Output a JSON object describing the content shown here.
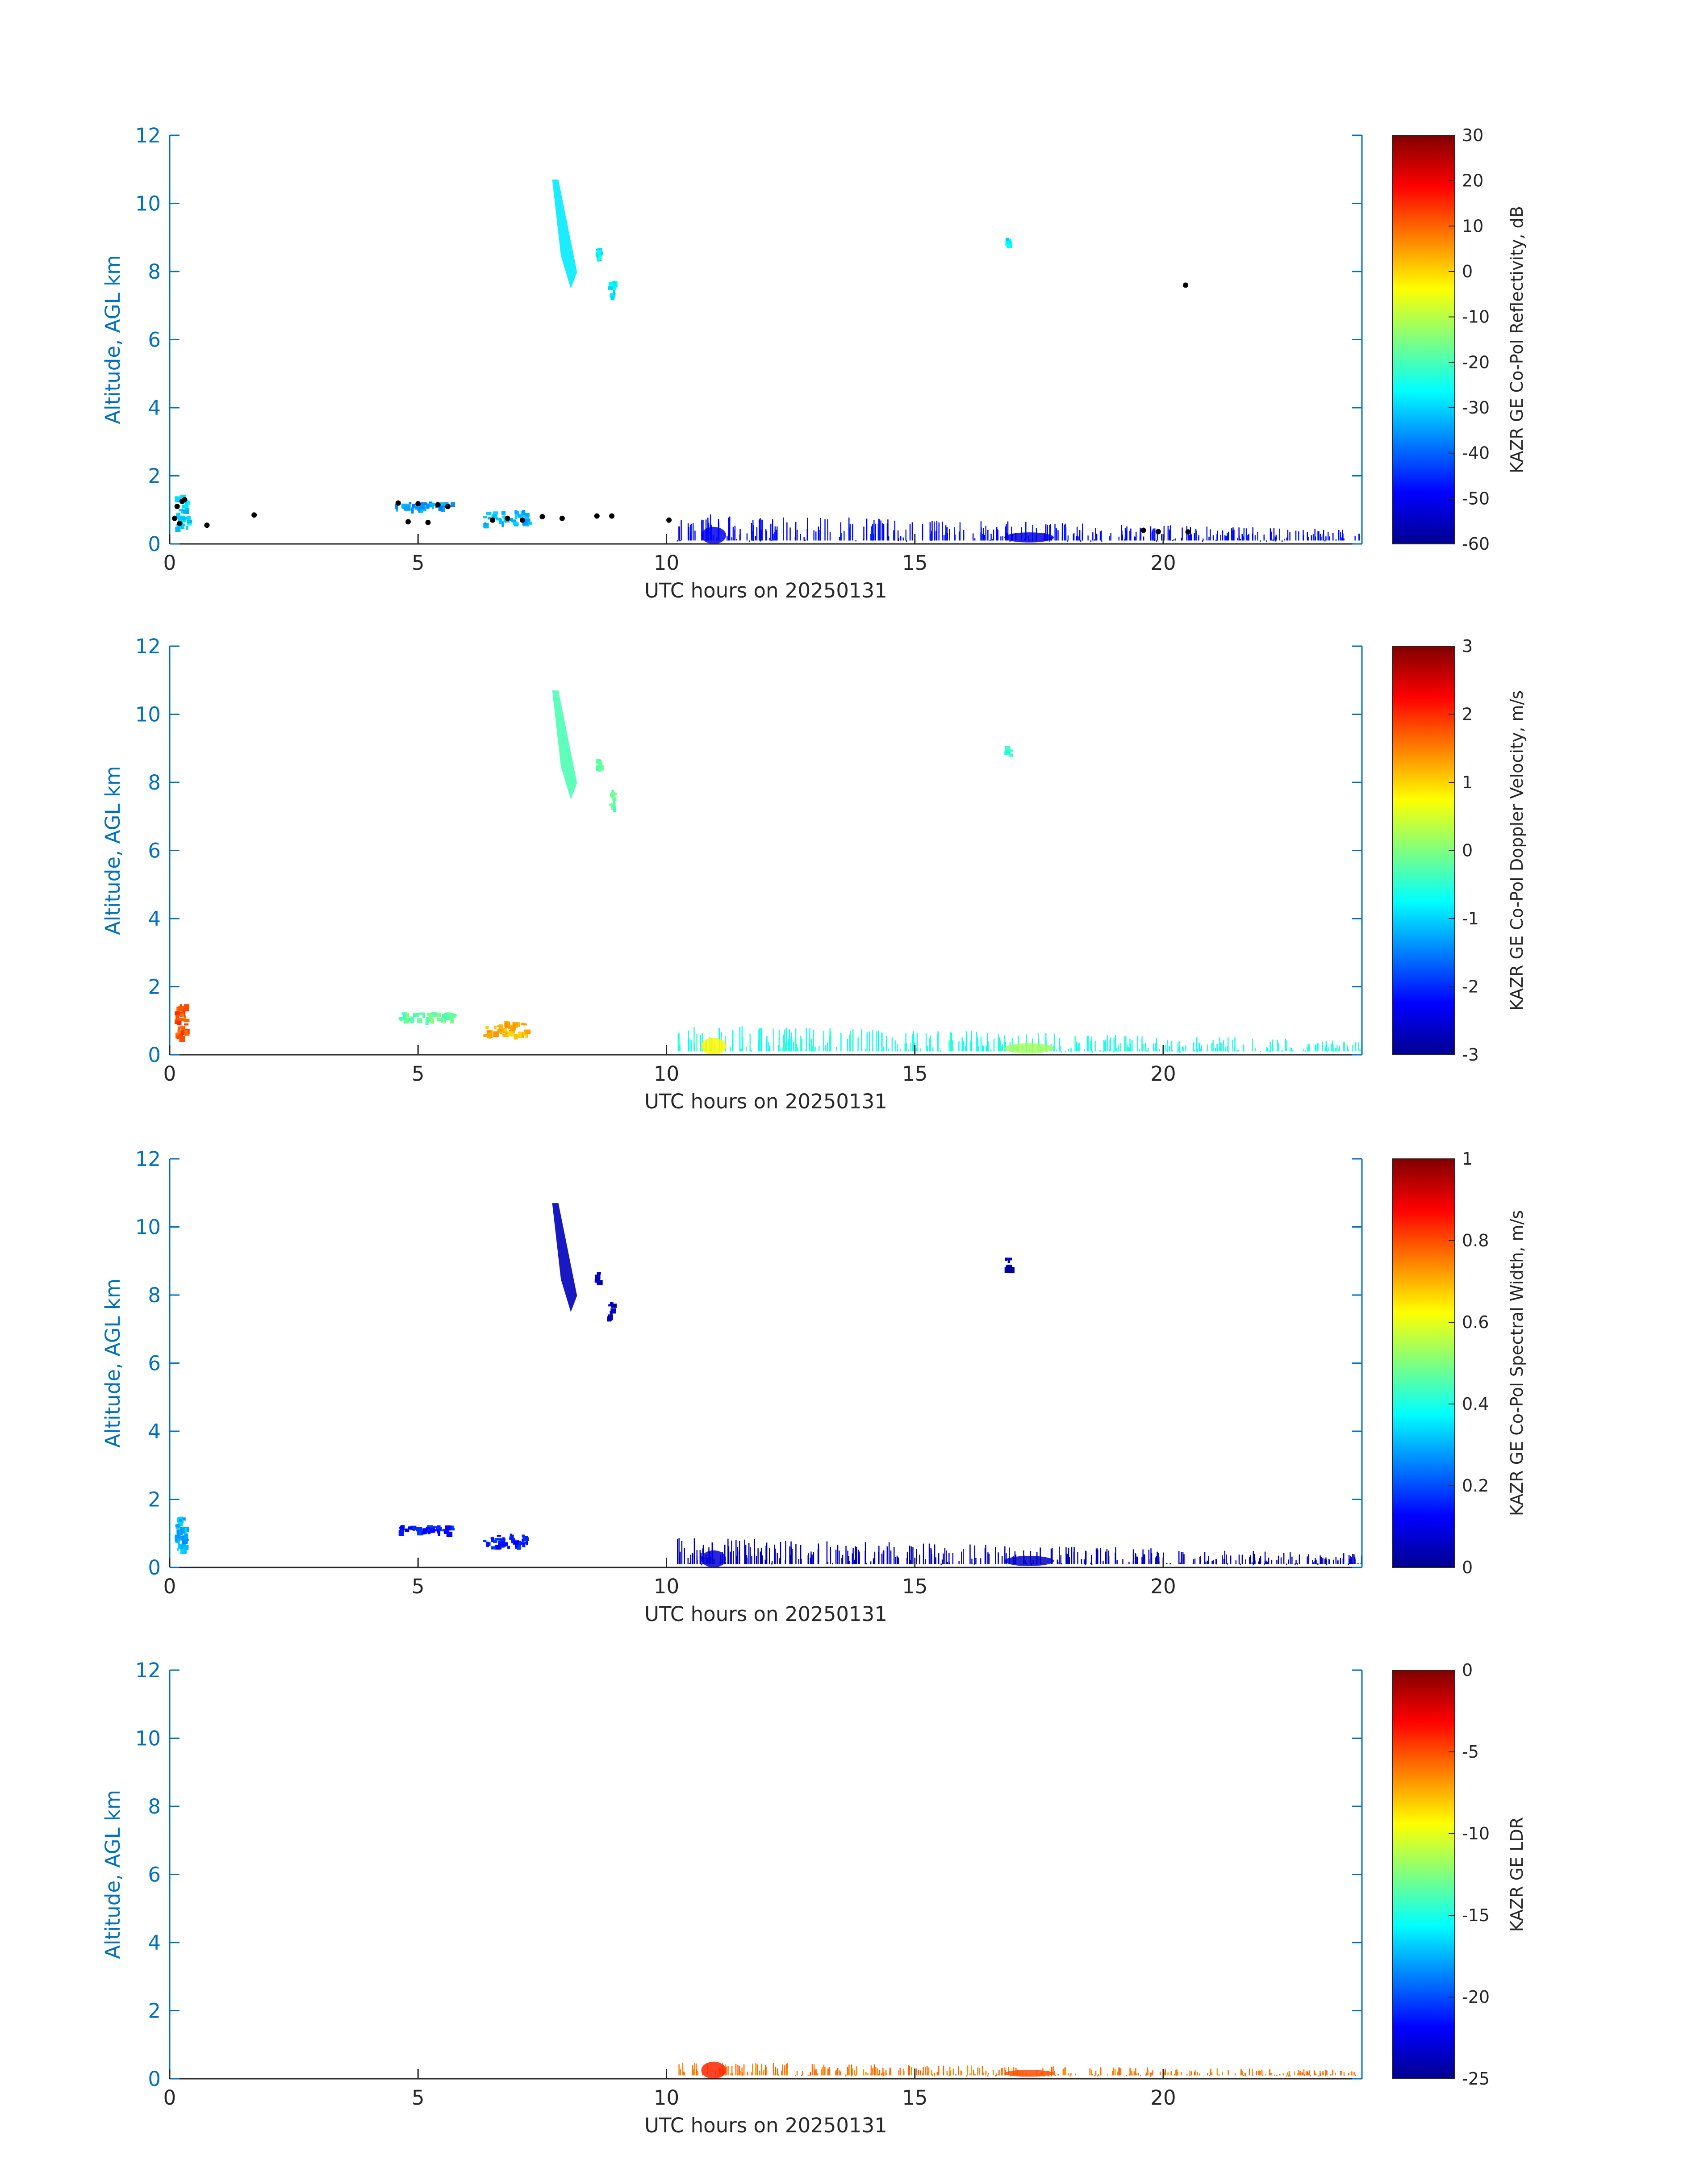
{
  "chart_data": [
    {
      "type": "heatmap",
      "xlabel": "UTC hours on 20250131",
      "ylabel": "Altitude, AGL km",
      "xlim": [
        0,
        24
      ],
      "ylim": [
        0,
        12
      ],
      "xticks": [
        "0",
        "5",
        "10",
        "15",
        "20"
      ],
      "yticks": [
        "0",
        "2",
        "4",
        "6",
        "8",
        "10",
        "12"
      ],
      "colorbar": {
        "label": "KAZR GE Co-Pol Reflectivity, dB",
        "range": [
          -60,
          30
        ],
        "ticks": [
          "30",
          "20",
          "10",
          "0",
          "-10",
          "-20",
          "-30",
          "-40",
          "-50",
          "-60"
        ],
        "colormap": "jet"
      },
      "features": [
        {
          "kind": "fall-streak",
          "x": [
            7.7,
            8.2
          ],
          "y": [
            7.5,
            10.7
          ],
          "value": -28
        },
        {
          "kind": "patch",
          "x": [
            8.8,
            8.95
          ],
          "y": [
            7.3,
            7.8
          ],
          "value": -28
        },
        {
          "kind": "patch",
          "x": [
            8.55,
            8.65
          ],
          "y": [
            8.4,
            8.7
          ],
          "value": -28
        },
        {
          "kind": "patch",
          "x": [
            16.8,
            16.9
          ],
          "y": [
            8.8,
            9.1
          ],
          "value": -28
        },
        {
          "kind": "low-cloud",
          "x": [
            0.1,
            0.35
          ],
          "y": [
            0.5,
            1.5
          ],
          "value": -30
        },
        {
          "kind": "low-cloud",
          "x": [
            4.5,
            5.7
          ],
          "y": [
            1.05,
            1.25
          ],
          "value": -35
        },
        {
          "kind": "low-cloud",
          "x": [
            6.3,
            7.2
          ],
          "y": [
            0.6,
            1.0
          ],
          "value": -32
        },
        {
          "kind": "boundary-layer",
          "x": [
            10.2,
            24
          ],
          "y": [
            0.1,
            0.9
          ],
          "value": -48
        },
        {
          "kind": "core",
          "x": [
            10.7,
            11.2
          ],
          "y": [
            0.1,
            0.6
          ],
          "value": -50
        },
        {
          "kind": "core",
          "x": [
            16.8,
            17.8
          ],
          "y": [
            0.1,
            0.4
          ],
          "value": -52
        }
      ],
      "markers": {
        "color": "#000000",
        "points": [
          [
            0.15,
            1.1
          ],
          [
            0.25,
            1.25
          ],
          [
            0.3,
            1.3
          ],
          [
            0.2,
            0.6
          ],
          [
            0.1,
            0.75
          ],
          [
            0.75,
            0.55
          ],
          [
            1.7,
            0.85
          ],
          [
            4.6,
            1.2
          ],
          [
            5.0,
            1.18
          ],
          [
            5.4,
            1.15
          ],
          [
            5.6,
            1.1
          ],
          [
            4.8,
            0.65
          ],
          [
            5.2,
            0.63
          ],
          [
            6.5,
            0.7
          ],
          [
            6.8,
            0.75
          ],
          [
            7.1,
            0.7
          ],
          [
            7.5,
            0.8
          ],
          [
            7.9,
            0.75
          ],
          [
            8.6,
            0.82
          ],
          [
            8.9,
            0.82
          ],
          [
            10.05,
            0.7
          ],
          [
            19.6,
            0.4
          ],
          [
            19.9,
            0.36
          ],
          [
            20.5,
            0.35
          ],
          [
            20.45,
            7.6
          ]
        ]
      }
    },
    {
      "type": "heatmap",
      "xlabel": "UTC hours on 20250131",
      "ylabel": "Altitude, AGL km",
      "xlim": [
        0,
        24
      ],
      "ylim": [
        0,
        12
      ],
      "xticks": [
        "0",
        "5",
        "10",
        "15",
        "20"
      ],
      "yticks": [
        "0",
        "2",
        "4",
        "6",
        "8",
        "10",
        "12"
      ],
      "colorbar": {
        "label": "KAZR GE Co-Pol Doppler Velocity, m/s",
        "range": [
          -3,
          3
        ],
        "ticks": [
          "3",
          "2",
          "1",
          "0",
          "-1",
          "-2",
          "-3"
        ],
        "colormap": "jet"
      },
      "features": [
        {
          "kind": "fall-streak",
          "x": [
            7.7,
            8.2
          ],
          "y": [
            7.5,
            10.7
          ],
          "value": -0.3
        },
        {
          "kind": "patch",
          "x": [
            8.8,
            8.95
          ],
          "y": [
            7.3,
            7.8
          ],
          "value": -0.2
        },
        {
          "kind": "patch",
          "x": [
            8.55,
            8.65
          ],
          "y": [
            8.4,
            8.7
          ],
          "value": -0.2
        },
        {
          "kind": "patch",
          "x": [
            16.8,
            16.9
          ],
          "y": [
            8.8,
            9.1
          ],
          "value": -0.5
        },
        {
          "kind": "low-cloud",
          "x": [
            0.1,
            0.3
          ],
          "y": [
            0.5,
            1.5
          ],
          "value": 1.8
        },
        {
          "kind": "low-cloud",
          "x": [
            4.6,
            5.7
          ],
          "y": [
            1.05,
            1.25
          ],
          "value": -0.2
        },
        {
          "kind": "low-cloud",
          "x": [
            6.3,
            7.2
          ],
          "y": [
            0.6,
            1.0
          ],
          "value": 1.2
        },
        {
          "kind": "boundary-layer",
          "x": [
            10.2,
            24
          ],
          "y": [
            0.1,
            0.9
          ],
          "value": -0.6
        },
        {
          "kind": "core",
          "x": [
            10.7,
            11.2
          ],
          "y": [
            0.1,
            0.6
          ],
          "value": 0.8
        },
        {
          "kind": "core",
          "x": [
            16.8,
            17.8
          ],
          "y": [
            0.1,
            0.4
          ],
          "value": 0.2
        }
      ]
    },
    {
      "type": "heatmap",
      "xlabel": "UTC hours on 20250131",
      "ylabel": "Altitude, AGL km",
      "xlim": [
        0,
        24
      ],
      "ylim": [
        0,
        12
      ],
      "xticks": [
        "0",
        "5",
        "10",
        "15",
        "20"
      ],
      "yticks": [
        "0",
        "2",
        "4",
        "6",
        "8",
        "10",
        "12"
      ],
      "colorbar": {
        "label": "KAZR GE Co-Pol Spectral Width, m/s",
        "range": [
          0,
          1
        ],
        "ticks": [
          "1",
          "0.8",
          "0.6",
          "0.4",
          "0.2",
          "0"
        ],
        "colormap": "jet"
      },
      "features": [
        {
          "kind": "fall-streak",
          "x": [
            7.7,
            8.2
          ],
          "y": [
            7.5,
            10.7
          ],
          "value": 0.05
        },
        {
          "kind": "patch",
          "x": [
            8.8,
            8.95
          ],
          "y": [
            7.3,
            7.8
          ],
          "value": 0.05
        },
        {
          "kind": "patch",
          "x": [
            8.55,
            8.65
          ],
          "y": [
            8.4,
            8.7
          ],
          "value": 0.05
        },
        {
          "kind": "patch",
          "x": [
            16.8,
            16.9
          ],
          "y": [
            8.8,
            9.1
          ],
          "value": 0.05
        },
        {
          "kind": "low-cloud",
          "x": [
            0.1,
            0.3
          ],
          "y": [
            0.5,
            1.5
          ],
          "value": 0.3
        },
        {
          "kind": "low-cloud",
          "x": [
            4.6,
            5.7
          ],
          "y": [
            1.05,
            1.25
          ],
          "value": 0.15
        },
        {
          "kind": "low-cloud",
          "x": [
            6.3,
            7.2
          ],
          "y": [
            0.6,
            1.0
          ],
          "value": 0.15
        },
        {
          "kind": "boundary-layer",
          "x": [
            10.2,
            24
          ],
          "y": [
            0.1,
            0.9
          ],
          "value": 0.05
        },
        {
          "kind": "core",
          "x": [
            10.7,
            11.2
          ],
          "y": [
            0.1,
            0.6
          ],
          "value": 0.08
        },
        {
          "kind": "core",
          "x": [
            16.8,
            17.8
          ],
          "y": [
            0.1,
            0.4
          ],
          "value": 0.06
        }
      ]
    },
    {
      "type": "heatmap",
      "xlabel": "UTC hours on 20250131",
      "ylabel": "Altitude, AGL km",
      "xlim": [
        0,
        24
      ],
      "ylim": [
        0,
        12
      ],
      "xticks": [
        "0",
        "5",
        "10",
        "15",
        "20"
      ],
      "yticks": [
        "0",
        "2",
        "4",
        "6",
        "8",
        "10",
        "12"
      ],
      "colorbar": {
        "label": "KAZR GE LDR",
        "range": [
          -25,
          0
        ],
        "ticks": [
          "0",
          "-5",
          "-10",
          "-15",
          "-20",
          "-25"
        ],
        "colormap": "jet"
      },
      "features": [
        {
          "kind": "boundary-layer",
          "x": [
            10.2,
            24
          ],
          "y": [
            0.1,
            0.5
          ],
          "value": -6
        },
        {
          "kind": "core",
          "x": [
            10.7,
            11.2
          ],
          "y": [
            0.1,
            0.6
          ],
          "value": -4
        },
        {
          "kind": "core",
          "x": [
            16.8,
            17.8
          ],
          "y": [
            0.1,
            0.3
          ],
          "value": -5
        }
      ]
    }
  ]
}
